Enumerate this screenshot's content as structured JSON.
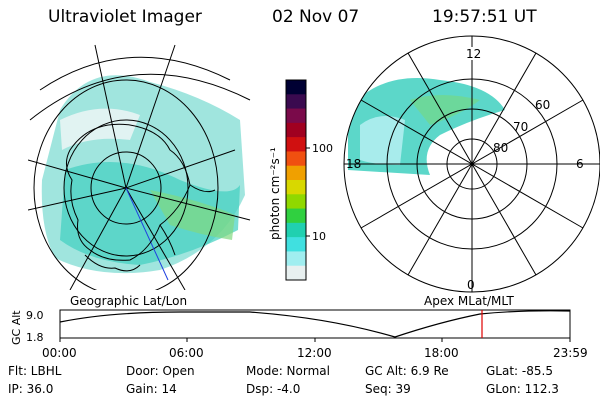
{
  "header": {
    "instrument": "Ultraviolet Imager",
    "date": "02 Nov 07",
    "time": "19:57:51 UT"
  },
  "panels": {
    "left_label": "Geographic Lat/Lon",
    "right_label": "Apex MLat/MLT"
  },
  "colorbar": {
    "unit_label": "photon cm⁻²s⁻¹",
    "ticks": [
      "100",
      "10"
    ],
    "colors": [
      "#000033",
      "#3a0a4f",
      "#7a0a4a",
      "#a00020",
      "#d01010",
      "#f05010",
      "#f0a000",
      "#d8d800",
      "#90d800",
      "#30d040",
      "#20d0b0",
      "#40e0e0",
      "#a0eef0",
      "#e8f0f0"
    ]
  },
  "polar_labels": {
    "mlt": [
      "12",
      "6",
      "18",
      "0"
    ],
    "mlat": [
      "60",
      "70",
      "80"
    ]
  },
  "altitude_plot": {
    "ylabel": "GC Alt",
    "yticks": [
      "9.0",
      "1.8"
    ],
    "xticks": [
      "00:00",
      "06:00",
      "12:00",
      "18:00",
      "23:59"
    ],
    "marker_color": "#e00000"
  },
  "info": {
    "flt": "Flt: LBHL",
    "ip": "IP: 36.0",
    "door": "Door: Open",
    "gain": "Gain: 14",
    "mode": "Mode: Normal",
    "dsp": "Dsp:   -4.0",
    "gcalt": "GC Alt: 6.9 Re",
    "seq": "Seq: 39",
    "glat": "GLat: -85.5",
    "glon": "GLon: 112.3"
  }
}
